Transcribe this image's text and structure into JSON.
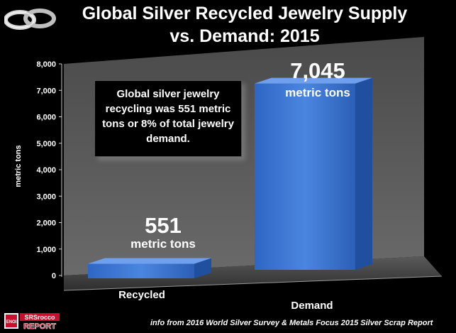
{
  "title": {
    "line1": "Global Silver Recycled Jewelry Supply",
    "line2": "vs. Demand: 2015"
  },
  "note": "Global silver jewelry recycling was 551 metric tons or 8% of total jewelry demand.",
  "source": "info from 2016 World Silver Survey & Metals Focus 2015 Silver Scrap Report",
  "logo": {
    "top": "SRSrocco",
    "bottom": "REPORT",
    "badge": "ENOI"
  },
  "chart_data": {
    "type": "bar",
    "categories": [
      "Recycled",
      "Demand"
    ],
    "values": [
      551,
      7045
    ],
    "value_labels": [
      {
        "value": "551",
        "unit": "metric tons"
      },
      {
        "value": "7,045",
        "unit": "metric tons"
      }
    ],
    "ylabel": "metric tons",
    "ylim": [
      0,
      8000
    ],
    "yticks": [
      "0",
      "1,000",
      "2,000",
      "3,000",
      "4,000",
      "5,000",
      "6,000",
      "7,000",
      "8,000"
    ],
    "colors": {
      "bar": "#3a74d4",
      "bar_top": "#6fa0ee",
      "bar_side": "#1f4f9e",
      "wall": "#505050",
      "floor": "#3c3c3c"
    },
    "grid": false
  }
}
